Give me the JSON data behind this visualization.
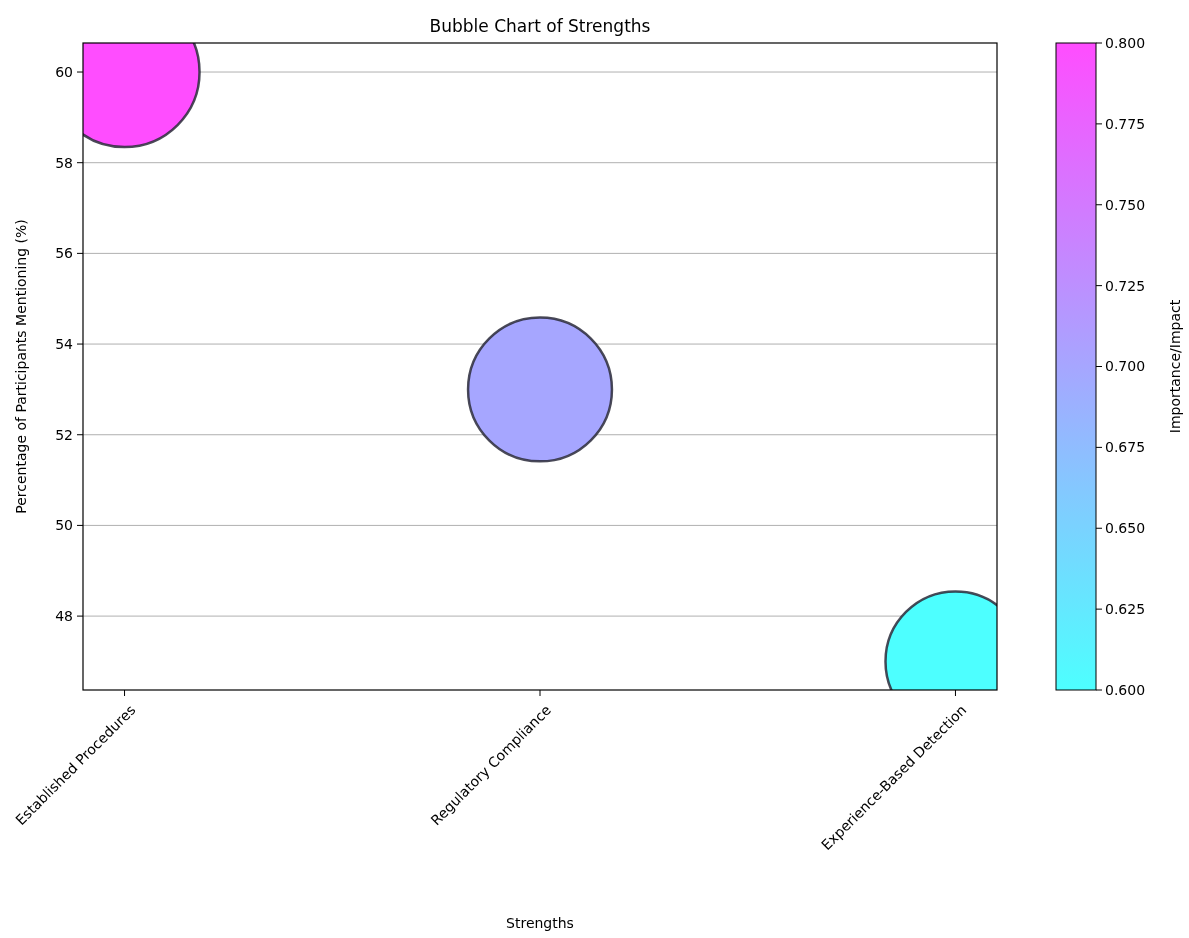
{
  "chart_data": {
    "type": "bubble",
    "title": "Bubble Chart of Strengths",
    "xlabel": "Strengths",
    "ylabel": "Percentage of Participants Mentioning (%)",
    "clabel": "Importance/Impact",
    "categories": [
      "Established Procedures",
      "Regulatory Compliance",
      "Experience-Based Detection"
    ],
    "values": [
      60,
      53,
      47
    ],
    "sizes": [
      1,
      0.92,
      0.87
    ],
    "cvalues": [
      0.8,
      0.7,
      0.6
    ],
    "ylim": [
      46.37,
      60.64
    ],
    "yticks": [
      48,
      50,
      52,
      54,
      56,
      58,
      60
    ],
    "clim": [
      0.6,
      0.8
    ],
    "cticks": [
      {
        "value": 0.6,
        "label": "0.600"
      },
      {
        "value": 0.625,
        "label": "0.625"
      },
      {
        "value": 0.65,
        "label": "0.650"
      },
      {
        "value": 0.675,
        "label": "0.675"
      },
      {
        "value": 0.7,
        "label": "0.700"
      },
      {
        "value": 0.725,
        "label": "0.725"
      },
      {
        "value": 0.75,
        "label": "0.750"
      },
      {
        "value": 0.775,
        "label": "0.775"
      },
      {
        "value": 0.8,
        "label": "0.800"
      }
    ],
    "grid": "y"
  }
}
